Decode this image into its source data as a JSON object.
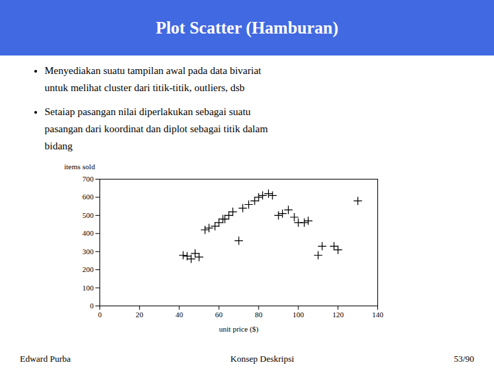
{
  "chart_data": {
    "type": "scatter",
    "title": "Plot Scatter (Hamburan)",
    "bullets": [
      [
        "Menyediakan suatu tampilan awal pada data bivariat",
        "untuk melihat cluster dari titik-titik, outliers, dsb"
      ],
      [
        "Setaiap pasangan nilai diperlakukan sebagai suatu",
        "pasangan dari koordinat dan diplot sebagai titik dalam",
        "bidang"
      ]
    ],
    "footer": [
      "Edward Purba",
      "Konsep Deskripsi",
      "53/90"
    ],
    "x": [
      42,
      44,
      46,
      48,
      50,
      53,
      55,
      58,
      60,
      62,
      63,
      65,
      67,
      70,
      72,
      75,
      78,
      80,
      82,
      85,
      87,
      90,
      92,
      95,
      98,
      100,
      103,
      105,
      110,
      112,
      118,
      120,
      130
    ],
    "values": [
      280,
      275,
      260,
      290,
      270,
      420,
      430,
      440,
      460,
      480,
      480,
      500,
      520,
      360,
      540,
      560,
      580,
      600,
      610,
      620,
      610,
      500,
      510,
      530,
      490,
      460,
      460,
      470,
      280,
      330,
      330,
      310,
      580
    ],
    "xlabel": "unit price ($)",
    "ylabel": "items sold",
    "xlim": [
      0,
      140
    ],
    "ylim": [
      0,
      700
    ],
    "xticks": [
      0,
      20,
      40,
      60,
      80,
      100,
      120,
      140
    ],
    "yticks": [
      0,
      100,
      200,
      300,
      400,
      500,
      600,
      700
    ],
    "color": "#000000",
    "marker": "plus"
  }
}
